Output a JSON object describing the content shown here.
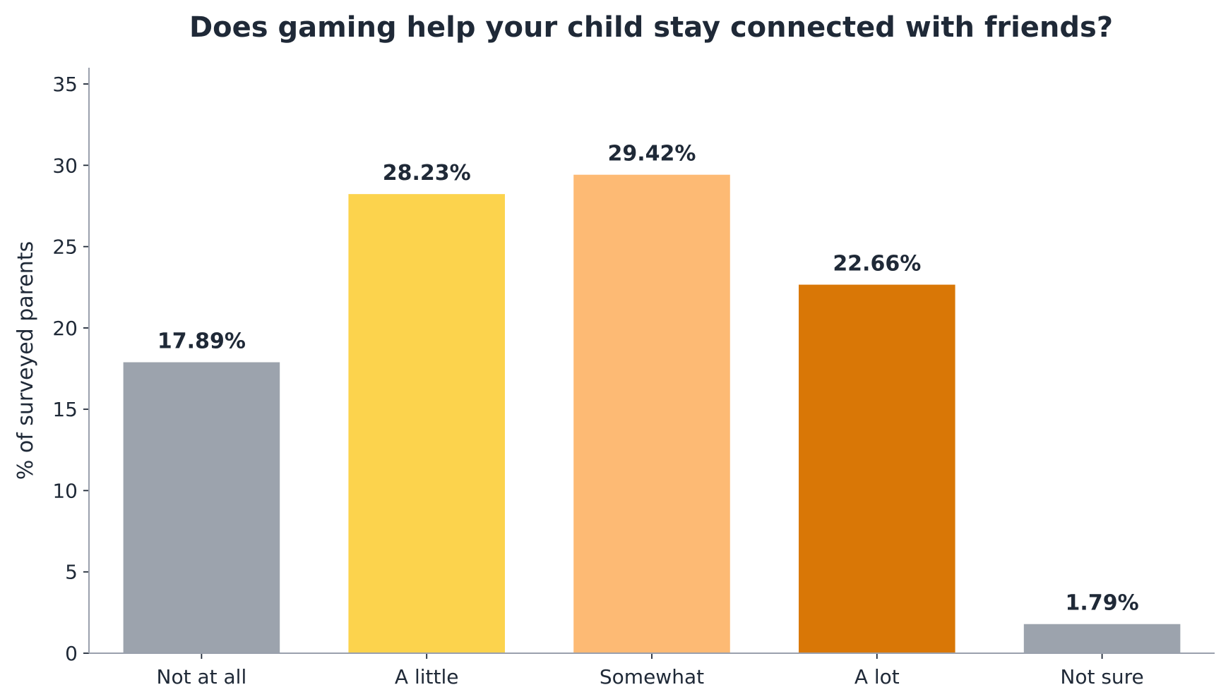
{
  "chart_data": {
    "type": "bar",
    "title": "Does gaming help your child stay connected with friends?",
    "xlabel": "",
    "ylabel": "% of surveyed parents",
    "categories": [
      "Not at all",
      "A little",
      "Somewhat",
      "A lot",
      "Not sure"
    ],
    "values": [
      17.89,
      28.23,
      29.42,
      22.66,
      1.79
    ],
    "data_labels": [
      "17.89%",
      "28.23%",
      "29.42%",
      "22.66%",
      "1.79%"
    ],
    "colors": [
      "#9ca3ad",
      "#fcd34d",
      "#fdba74",
      "#d97706",
      "#9ca3ad"
    ],
    "ylim": [
      0,
      36
    ],
    "yticks": [
      0,
      5,
      10,
      15,
      20,
      25,
      30,
      35
    ],
    "ytick_labels": [
      "0",
      "5",
      "10",
      "15",
      "20",
      "25",
      "30",
      "35"
    ],
    "grid": false,
    "legend": "none"
  }
}
